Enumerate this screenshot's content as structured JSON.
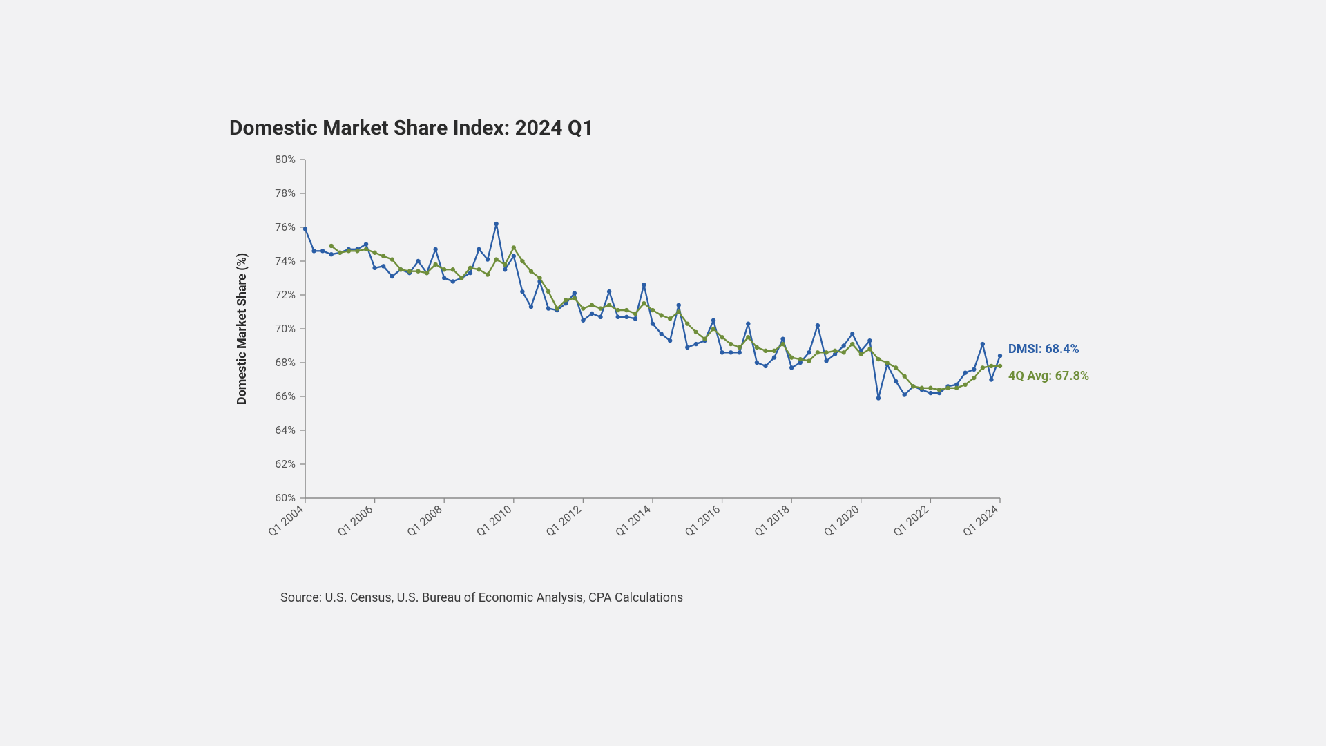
{
  "title": "Domestic Market Share Index: 2024 Q1",
  "source_text": "Source: U.S. Census, U.S. Bureau of Economic Analysis, CPA Calculations",
  "chart": {
    "type": "line",
    "background_color": "#f2f2f3",
    "plot_bg": "#f2f2f3",
    "axis_color": "#8a8a8a",
    "tick_color": "#555555",
    "tick_font_size": 16,
    "ylabel": "Domestic Market Share (%)",
    "ylabel_font_size": 18,
    "ylabel_font_weight": 700,
    "ylabel_color": "#2b2b2b",
    "ylim": [
      60,
      80
    ],
    "ytick_step": 2,
    "yticks": [
      60,
      62,
      64,
      66,
      68,
      70,
      72,
      74,
      76,
      78,
      80
    ],
    "ytick_labels": [
      "60%",
      "62%",
      "64%",
      "66%",
      "68%",
      "70%",
      "72%",
      "74%",
      "76%",
      "78%",
      "80%"
    ],
    "x_count": 81,
    "xtick_indices": [
      0,
      8,
      16,
      24,
      32,
      40,
      48,
      56,
      64,
      72,
      80
    ],
    "xtick_labels": [
      "Q1 2004",
      "Q1 2006",
      "Q1 2008",
      "Q1 2010",
      "Q1 2012",
      "Q1 2014",
      "Q1 2016",
      "Q1 2018",
      "Q1 2020",
      "Q1 2022",
      "Q1 2024"
    ],
    "xtick_rotation": -40,
    "grid_on": false,
    "marker_radius": 3.2,
    "line_width": 2.4,
    "series": [
      {
        "name": "DMSI",
        "color": "#2b5ea6",
        "label": "DMSI: 68.4%",
        "label_color": "#2b5ea6",
        "label_font_size": 18,
        "label_font_weight": 700,
        "values": [
          75.9,
          74.6,
          74.6,
          74.4,
          74.5,
          74.7,
          74.7,
          75.0,
          73.6,
          73.7,
          73.1,
          73.5,
          73.3,
          74.0,
          73.3,
          74.7,
          73.0,
          72.8,
          73.0,
          73.3,
          74.7,
          74.1,
          76.2,
          73.5,
          74.3,
          72.2,
          71.3,
          72.8,
          71.2,
          71.1,
          71.5,
          72.1,
          70.5,
          70.9,
          70.7,
          72.2,
          70.7,
          70.7,
          70.6,
          72.6,
          70.3,
          69.7,
          69.3,
          71.4,
          68.9,
          69.1,
          69.3,
          70.5,
          68.6,
          68.6,
          68.6,
          70.3,
          68.0,
          67.8,
          68.3,
          69.4,
          67.7,
          68.0,
          68.6,
          70.2,
          68.1,
          68.5,
          69.0,
          69.7,
          68.7,
          69.3,
          65.9,
          67.9,
          66.9,
          66.1,
          66.6,
          66.4,
          66.2,
          66.2,
          66.6,
          66.7,
          67.4,
          67.6,
          69.1,
          67.0,
          68.4
        ]
      },
      {
        "name": "4Q Avg",
        "color": "#6f8e3a",
        "label": "4Q Avg: 67.8%",
        "label_color": "#6f8e3a",
        "label_font_size": 18,
        "label_font_weight": 700,
        "values": [
          null,
          null,
          null,
          74.9,
          74.5,
          74.6,
          74.6,
          74.7,
          74.5,
          74.3,
          74.1,
          73.5,
          73.4,
          73.4,
          73.3,
          73.8,
          73.5,
          73.5,
          73.0,
          73.6,
          73.5,
          73.2,
          74.1,
          73.8,
          74.8,
          74.0,
          73.4,
          73.0,
          72.2,
          71.2,
          71.7,
          71.8,
          71.2,
          71.4,
          71.2,
          71.4,
          71.1,
          71.1,
          70.9,
          71.5,
          71.1,
          70.8,
          70.6,
          71.0,
          70.3,
          69.8,
          69.4,
          70.0,
          69.5,
          69.1,
          68.9,
          69.5,
          68.9,
          68.7,
          68.7,
          69.1,
          68.3,
          68.2,
          68.1,
          68.6,
          68.6,
          68.7,
          68.6,
          69.1,
          68.5,
          68.8,
          68.2,
          68.0,
          67.7,
          67.2,
          66.6,
          66.5,
          66.5,
          66.4,
          66.5,
          66.5,
          66.7,
          67.1,
          67.7,
          67.8,
          67.8
        ]
      }
    ]
  }
}
